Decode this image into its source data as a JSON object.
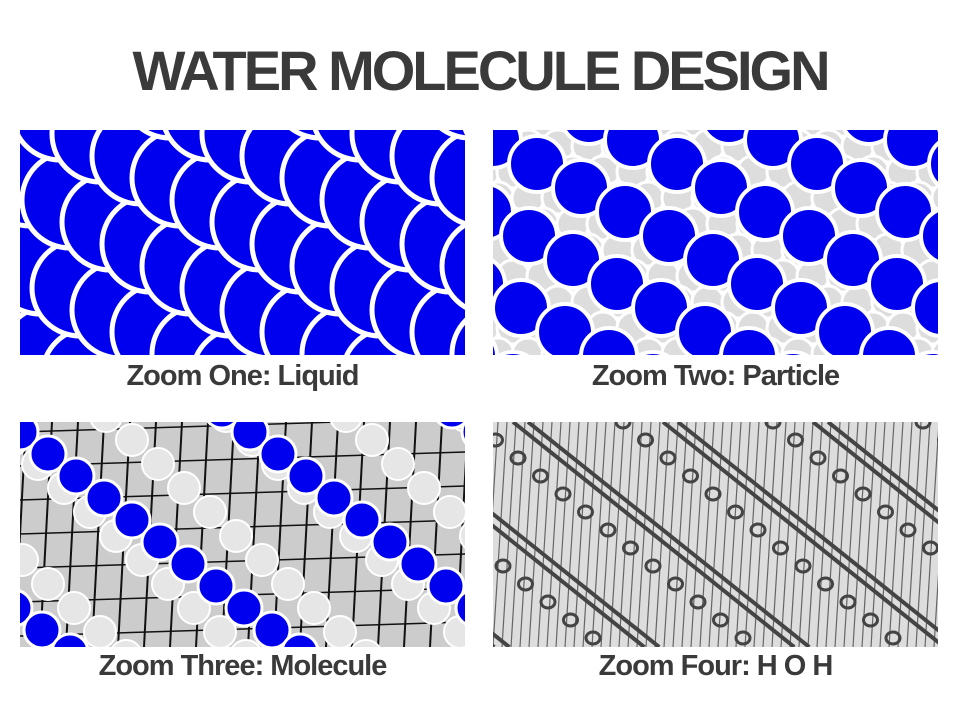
{
  "title": "WATER MOLECULE DESIGN",
  "colors": {
    "blue": "#0000ee",
    "light_gray": "#dddddd",
    "dark_gray": "#444444",
    "text": "#3a3a3a"
  },
  "panels": [
    {
      "caption": "Zoom One: Liquid",
      "pattern": "scales"
    },
    {
      "caption": "Zoom Two: Particle",
      "pattern": "blue-bands-on-gray-circles"
    },
    {
      "caption": "Zoom Three: Molecule",
      "pattern": "molecules"
    },
    {
      "caption": "Zoom Four: H O H",
      "pattern": "chains-and-hatch"
    }
  ]
}
